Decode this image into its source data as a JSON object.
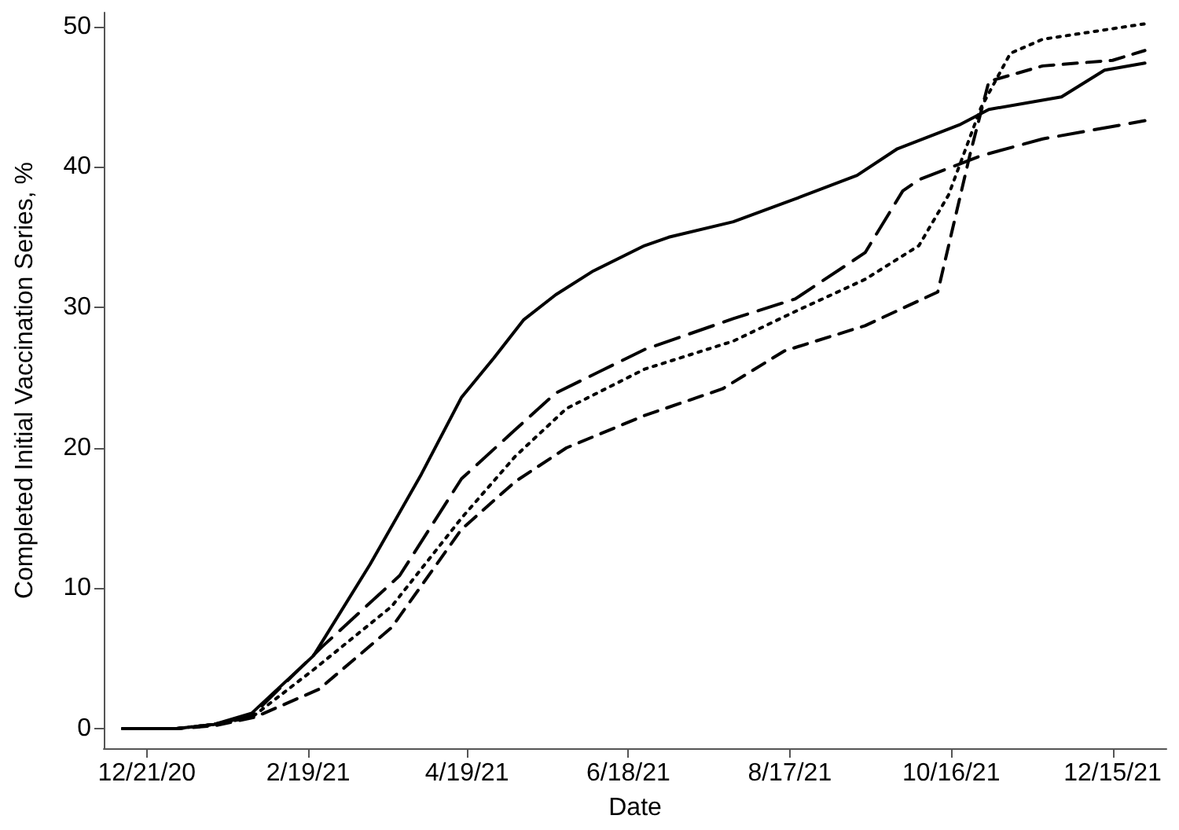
{
  "chart_data": {
    "type": "line",
    "xlabel": "Date",
    "ylabel": "Completed Initial Vaccination Series, %",
    "xlim": [
      "2020-12-05",
      "2022-01-04"
    ],
    "ylim": [
      -1.4,
      51
    ],
    "xticks": [
      {
        "value": "2020-12-21",
        "label": "12/21/20"
      },
      {
        "value": "2021-02-19",
        "label": "2/19/21"
      },
      {
        "value": "2021-04-19",
        "label": "4/19/21"
      },
      {
        "value": "2021-06-18",
        "label": "6/18/21"
      },
      {
        "value": "2021-08-17",
        "label": "8/17/21"
      },
      {
        "value": "2021-10-16",
        "label": "10/16/21"
      },
      {
        "value": "2021-12-15",
        "label": "12/15/21"
      }
    ],
    "yticks": [
      0,
      10,
      20,
      30,
      40,
      50
    ],
    "grid": false,
    "marker": "none",
    "series": [
      {
        "color": "#000000",
        "line_style": "solid",
        "x": [
          "2020-12-12",
          "2021-01-01",
          "2021-01-15",
          "2021-01-29",
          "2021-02-21",
          "2021-03-14",
          "2021-04-02",
          "2021-04-17",
          "2021-04-29",
          "2021-05-10",
          "2021-05-22",
          "2021-06-05",
          "2021-06-24",
          "2021-07-03",
          "2021-07-27",
          "2021-08-20",
          "2021-09-11",
          "2021-09-26",
          "2021-10-19",
          "2021-10-30",
          "2021-11-26",
          "2021-12-12",
          "2021-12-27"
        ],
        "values": [
          0,
          0,
          0.3,
          1.1,
          5.2,
          11.7,
          18.1,
          23.6,
          26.4,
          29.1,
          30.9,
          32.6,
          34.4,
          35.0,
          36.1,
          37.8,
          39.4,
          41.3,
          43.0,
          44.1,
          45.0,
          46.9,
          47.4
        ]
      },
      {
        "color": "#000000",
        "line_style": "dashed",
        "x": [
          "2020-12-12",
          "2021-01-01",
          "2021-01-15",
          "2021-01-29",
          "2021-02-24",
          "2021-03-25",
          "2021-04-17",
          "2021-05-07",
          "2021-05-22",
          "2021-06-24",
          "2021-07-27",
          "2021-08-19",
          "2021-09-14",
          "2021-09-28",
          "2021-10-04",
          "2021-10-27",
          "2021-11-19",
          "2021-12-27"
        ],
        "values": [
          0,
          0,
          0.3,
          0.9,
          5.8,
          10.9,
          17.8,
          21.3,
          23.9,
          27.0,
          29.2,
          30.6,
          33.9,
          38.3,
          39.1,
          40.8,
          42.0,
          43.3
        ]
      },
      {
        "color": "#000000",
        "line_style": "dotted",
        "x": [
          "2020-12-12",
          "2021-01-01",
          "2021-01-15",
          "2021-01-29",
          "2021-02-21",
          "2021-03-22",
          "2021-04-17",
          "2021-05-07",
          "2021-05-26",
          "2021-06-24",
          "2021-07-27",
          "2021-08-20",
          "2021-09-14",
          "2021-10-04",
          "2021-10-15",
          "2021-10-27",
          "2021-11-07",
          "2021-11-19",
          "2021-12-27"
        ],
        "values": [
          0,
          0,
          0.3,
          0.8,
          4.2,
          8.7,
          15.0,
          19.4,
          22.8,
          25.6,
          27.6,
          29.8,
          32.0,
          34.4,
          38.0,
          44.2,
          48.1,
          49.1,
          50.2
        ]
      },
      {
        "color": "#000000",
        "line_style": "dashed",
        "x": [
          "2020-12-12",
          "2021-01-01",
          "2021-01-15",
          "2021-01-30",
          "2021-02-23",
          "2021-03-22",
          "2021-04-17",
          "2021-05-07",
          "2021-05-26",
          "2021-06-24",
          "2021-07-23",
          "2021-08-15",
          "2021-09-14",
          "2021-10-11",
          "2021-10-23",
          "2021-10-30",
          "2021-11-19",
          "2021-12-15",
          "2021-12-27"
        ],
        "values": [
          0,
          0,
          0.2,
          0.8,
          2.8,
          7.2,
          14.2,
          17.6,
          20.0,
          22.3,
          24.2,
          26.9,
          28.7,
          31.1,
          40.9,
          46.1,
          47.2,
          47.6,
          48.3
        ]
      }
    ]
  }
}
